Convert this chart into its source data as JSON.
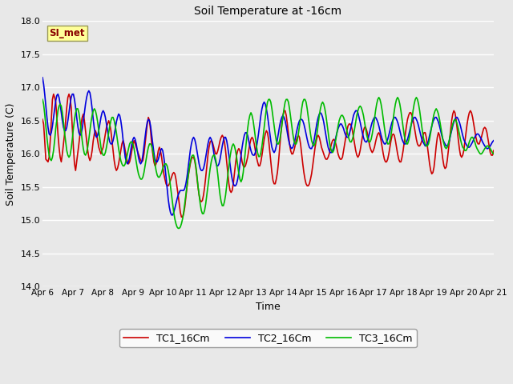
{
  "title": "Soil Temperature at -16cm",
  "xlabel": "Time",
  "ylabel": "Soil Temperature (C)",
  "ylim": [
    14.0,
    18.0
  ],
  "yticks": [
    14.0,
    14.5,
    15.0,
    15.5,
    16.0,
    16.5,
    17.0,
    17.5,
    18.0
  ],
  "xtick_labels": [
    "Apr 6",
    "Apr 7",
    "Apr 8",
    "Apr 9",
    "Apr 10",
    "Apr 11",
    "Apr 12",
    "Apr 13",
    "Apr 14",
    "Apr 15",
    "Apr 16",
    "Apr 17",
    "Apr 18",
    "Apr 19",
    "Apr 20",
    "Apr 21"
  ],
  "background_color": "#e8e8e8",
  "line_colors": [
    "#cc0000",
    "#0000dd",
    "#00bb00"
  ],
  "line_labels": [
    "TC1_16Cm",
    "TC2_16Cm",
    "TC3_16Cm"
  ],
  "annotation_text": "SI_met",
  "annotation_color": "#880000",
  "annotation_bg": "#ffff99",
  "TC1_16Cm": [
    16.52,
    16.45,
    16.2,
    15.92,
    15.9,
    15.88,
    15.95,
    16.2,
    16.5,
    16.82,
    16.9,
    16.85,
    16.78,
    16.55,
    16.3,
    16.1,
    15.95,
    15.88,
    16.0,
    16.15,
    16.3,
    16.5,
    16.7,
    16.85,
    16.9,
    16.85,
    16.7,
    16.4,
    16.1,
    15.85,
    15.75,
    15.88,
    16.0,
    16.15,
    16.3,
    16.45,
    16.55,
    16.6,
    16.5,
    16.35,
    16.2,
    16.05,
    15.95,
    15.9,
    15.95,
    16.05,
    16.2,
    16.3,
    16.35,
    16.3,
    16.2,
    16.1,
    16.05,
    16.0,
    16.05,
    16.1,
    16.2,
    16.3,
    16.4,
    16.45,
    16.5,
    16.45,
    16.35,
    16.2,
    16.05,
    15.9,
    15.8,
    15.75,
    15.78,
    15.85,
    15.95,
    16.05,
    16.15,
    16.2,
    16.15,
    16.05,
    15.95,
    15.88,
    15.85,
    15.88,
    15.95,
    16.05,
    16.15,
    16.2,
    16.15,
    16.1,
    16.05,
    16.0,
    15.95,
    15.9,
    15.88,
    15.9,
    16.0,
    16.15,
    16.3,
    16.45,
    16.55,
    16.5,
    16.35,
    16.15,
    16.0,
    15.88,
    15.82,
    15.85,
    15.95,
    16.05,
    16.1,
    16.05,
    15.95,
    15.82,
    15.7,
    15.62,
    15.55,
    15.52,
    15.52,
    15.55,
    15.6,
    15.65,
    15.7,
    15.72,
    15.7,
    15.62,
    15.5,
    15.38,
    15.25,
    15.12,
    15.05,
    15.05,
    15.1,
    15.2,
    15.35,
    15.5,
    15.65,
    15.75,
    15.85,
    15.92,
    15.95,
    15.95,
    15.9,
    15.8,
    15.65,
    15.5,
    15.38,
    15.3,
    15.28,
    15.3,
    15.38,
    15.5,
    15.65,
    15.82,
    15.98,
    16.1,
    16.18,
    16.2,
    16.18,
    16.12,
    16.05,
    16.0,
    16.0,
    16.05,
    16.12,
    16.2,
    16.25,
    16.28,
    16.25,
    16.18,
    16.05,
    15.88,
    15.7,
    15.55,
    15.45,
    15.42,
    15.45,
    15.55,
    15.7,
    15.85,
    15.98,
    16.05,
    16.08,
    16.05,
    15.98,
    15.88,
    15.82,
    15.8,
    15.82,
    15.88,
    15.95,
    16.05,
    16.15,
    16.22,
    16.25,
    16.22,
    16.15,
    16.05,
    15.95,
    15.88,
    15.82,
    15.82,
    15.88,
    15.98,
    16.1,
    16.22,
    16.3,
    16.35,
    16.32,
    16.22,
    16.05,
    15.88,
    15.72,
    15.6,
    15.55,
    15.55,
    15.62,
    15.72,
    15.88,
    16.08,
    16.28,
    16.45,
    16.58,
    16.65,
    16.65,
    16.58,
    16.45,
    16.3,
    16.15,
    16.05,
    16.0,
    16.0,
    16.05,
    16.12,
    16.2,
    16.25,
    16.28,
    16.25,
    16.15,
    16.0,
    15.85,
    15.72,
    15.62,
    15.55,
    15.52,
    15.52,
    15.55,
    15.62,
    15.7,
    15.82,
    15.95,
    16.08,
    16.18,
    16.25,
    16.28,
    16.25,
    16.18,
    16.1,
    16.05,
    16.0,
    15.95,
    15.92,
    15.92,
    15.95,
    16.0,
    16.08,
    16.15,
    16.2,
    16.22,
    16.2,
    16.15,
    16.08,
    16.0,
    15.95,
    15.92,
    15.92,
    15.95,
    16.05,
    16.15,
    16.25,
    16.35,
    16.42,
    16.45,
    16.45,
    16.42,
    16.35,
    16.25,
    16.15,
    16.05,
    15.98,
    15.95,
    15.98,
    16.05,
    16.15,
    16.25,
    16.35,
    16.4,
    16.4,
    16.35,
    16.28,
    16.18,
    16.1,
    16.05,
    16.02,
    16.05,
    16.1,
    16.18,
    16.25,
    16.3,
    16.32,
    16.28,
    16.2,
    16.1,
    16.0,
    15.92,
    15.88,
    15.88,
    15.92,
    16.0,
    16.1,
    16.2,
    16.28,
    16.3,
    16.28,
    16.2,
    16.1,
    16.0,
    15.92,
    15.88,
    15.88,
    15.95,
    16.05,
    16.18,
    16.3,
    16.42,
    16.52,
    16.58,
    16.62,
    16.62,
    16.58,
    16.52,
    16.42,
    16.32,
    16.22,
    16.15,
    16.12,
    16.12,
    16.15,
    16.2,
    16.28,
    16.32,
    16.32,
    16.25,
    16.12,
    15.98,
    15.85,
    15.75,
    15.7,
    15.72,
    15.8,
    15.95,
    16.12,
    16.25,
    16.32,
    16.28,
    16.18,
    16.05,
    15.92,
    15.82,
    15.78,
    15.8,
    15.9,
    16.05,
    16.2,
    16.35,
    16.5,
    16.6,
    16.65,
    16.62,
    16.52,
    16.38,
    16.22,
    16.08,
    15.98,
    15.95,
    15.98,
    16.05,
    16.18,
    16.32,
    16.45,
    16.55,
    16.62,
    16.65,
    16.62,
    16.55,
    16.45,
    16.35,
    16.25,
    16.18,
    16.15,
    16.15,
    16.2,
    16.25,
    16.32,
    16.38,
    16.4,
    16.38,
    16.32,
    16.22,
    16.12,
    16.02,
    15.98,
    15.98,
    16.05,
    16.15,
    16.28,
    16.42,
    16.55,
    16.65,
    16.72,
    16.72,
    16.68,
    16.58,
    16.45,
    16.32,
    16.2,
    16.12,
    16.08,
    16.1,
    16.15,
    16.22,
    16.3,
    16.38,
    16.45,
    16.48,
    16.48,
    16.45,
    16.38,
    16.32,
    16.25,
    16.2,
    16.18,
    16.18,
    16.22,
    16.28,
    16.35,
    16.4,
    16.45,
    16.45,
    16.42,
    16.35,
    16.25,
    16.15,
    16.08,
    16.05,
    16.08,
    16.15,
    16.25,
    16.38,
    16.5,
    16.62,
    16.7,
    16.72,
    16.72,
    16.65,
    16.55,
    16.42,
    16.3,
    16.2,
    16.12,
    16.1,
    16.12,
    16.18,
    16.25,
    16.35,
    16.42,
    16.48,
    16.52,
    16.5,
    16.45,
    16.38,
    16.32,
    16.28,
    16.28
  ],
  "TC2_16Cm": [
    17.15,
    17.05,
    16.9,
    16.72,
    16.55,
    16.4,
    16.3,
    16.28,
    16.32,
    16.42,
    16.55,
    16.68,
    16.8,
    16.88,
    16.9,
    16.85,
    16.75,
    16.62,
    16.5,
    16.4,
    16.35,
    16.35,
    16.4,
    16.5,
    16.62,
    16.75,
    16.85,
    16.9,
    16.9,
    16.82,
    16.7,
    16.55,
    16.42,
    16.32,
    16.28,
    16.3,
    16.38,
    16.5,
    16.62,
    16.75,
    16.85,
    16.92,
    16.95,
    16.92,
    16.82,
    16.68,
    16.52,
    16.38,
    16.28,
    16.25,
    16.28,
    16.35,
    16.45,
    16.55,
    16.62,
    16.65,
    16.62,
    16.55,
    16.45,
    16.35,
    16.25,
    16.18,
    16.15,
    16.15,
    16.2,
    16.28,
    16.38,
    16.48,
    16.55,
    16.6,
    16.58,
    16.5,
    16.38,
    16.22,
    16.08,
    15.95,
    15.88,
    15.85,
    15.88,
    15.95,
    16.05,
    16.15,
    16.22,
    16.25,
    16.22,
    16.15,
    16.05,
    15.95,
    15.88,
    15.85,
    15.88,
    15.98,
    16.12,
    16.25,
    16.38,
    16.48,
    16.52,
    16.5,
    16.42,
    16.28,
    16.15,
    16.02,
    15.92,
    15.88,
    15.88,
    15.92,
    15.98,
    16.05,
    16.08,
    16.05,
    15.95,
    15.82,
    15.65,
    15.48,
    15.32,
    15.2,
    15.12,
    15.08,
    15.08,
    15.12,
    15.18,
    15.25,
    15.32,
    15.38,
    15.42,
    15.45,
    15.45,
    15.45,
    15.45,
    15.48,
    15.55,
    15.65,
    15.78,
    15.92,
    16.05,
    16.15,
    16.22,
    16.25,
    16.22,
    16.15,
    16.05,
    15.95,
    15.85,
    15.78,
    15.75,
    15.75,
    15.78,
    15.85,
    15.95,
    16.05,
    16.15,
    16.22,
    16.25,
    16.22,
    16.15,
    16.05,
    15.95,
    15.88,
    15.82,
    15.82,
    15.85,
    15.92,
    16.02,
    16.12,
    16.2,
    16.25,
    16.25,
    16.2,
    16.1,
    15.98,
    15.85,
    15.72,
    15.62,
    15.55,
    15.52,
    15.52,
    15.55,
    15.62,
    15.72,
    15.85,
    15.98,
    16.1,
    16.2,
    16.28,
    16.32,
    16.32,
    16.28,
    16.2,
    16.12,
    16.05,
    16.0,
    15.98,
    15.98,
    16.02,
    16.1,
    16.2,
    16.32,
    16.45,
    16.58,
    16.68,
    16.75,
    16.78,
    16.75,
    16.68,
    16.58,
    16.45,
    16.32,
    16.2,
    16.1,
    16.05,
    16.02,
    16.05,
    16.12,
    16.22,
    16.32,
    16.42,
    16.5,
    16.55,
    16.58,
    16.55,
    16.5,
    16.42,
    16.32,
    16.22,
    16.15,
    16.1,
    16.08,
    16.1,
    16.15,
    16.22,
    16.3,
    16.38,
    16.45,
    16.5,
    16.52,
    16.52,
    16.5,
    16.45,
    16.38,
    16.3,
    16.22,
    16.15,
    16.1,
    16.08,
    16.08,
    16.12,
    16.18,
    16.28,
    16.38,
    16.48,
    16.55,
    16.6,
    16.62,
    16.6,
    16.55,
    16.48,
    16.38,
    16.28,
    16.18,
    16.1,
    16.05,
    16.02,
    16.02,
    16.05,
    16.1,
    16.18,
    16.25,
    16.32,
    16.38,
    16.42,
    16.45,
    16.45,
    16.42,
    16.38,
    16.32,
    16.28,
    16.25,
    16.25,
    16.28,
    16.35,
    16.42,
    16.5,
    16.58,
    16.62,
    16.65,
    16.65,
    16.62,
    16.55,
    16.48,
    16.4,
    16.32,
    16.25,
    16.2,
    16.18,
    16.18,
    16.22,
    16.28,
    16.35,
    16.42,
    16.48,
    16.52,
    16.55,
    16.55,
    16.52,
    16.48,
    16.42,
    16.35,
    16.28,
    16.22,
    16.18,
    16.15,
    16.15,
    16.18,
    16.22,
    16.28,
    16.35,
    16.42,
    16.48,
    16.52,
    16.55,
    16.55,
    16.52,
    16.48,
    16.42,
    16.35,
    16.28,
    16.22,
    16.18,
    16.15,
    16.15,
    16.18,
    16.22,
    16.28,
    16.35,
    16.42,
    16.48,
    16.52,
    16.55,
    16.55,
    16.52,
    16.48,
    16.42,
    16.35,
    16.28,
    16.22,
    16.18,
    16.15,
    16.12,
    16.12,
    16.15,
    16.2,
    16.28,
    16.35,
    16.42,
    16.48,
    16.52,
    16.55,
    16.55,
    16.52,
    16.48,
    16.42,
    16.35,
    16.28,
    16.22,
    16.18,
    16.15,
    16.12,
    16.12,
    16.15,
    16.2,
    16.28,
    16.35,
    16.42,
    16.48,
    16.52,
    16.55,
    16.55,
    16.52,
    16.48,
    16.42,
    16.35,
    16.28,
    16.22,
    16.18,
    16.15,
    16.12,
    16.1,
    16.1,
    16.12,
    16.15,
    16.18,
    16.22,
    16.25,
    16.28,
    16.3,
    16.3,
    16.28,
    16.25,
    16.22,
    16.18,
    16.15,
    16.12,
    16.1,
    16.08,
    16.08,
    16.1,
    16.12,
    16.15,
    16.18,
    16.2,
    16.22,
    16.22,
    16.2,
    16.18,
    16.15,
    16.12,
    16.1,
    16.08,
    16.05,
    16.05,
    16.08,
    16.1,
    16.12,
    16.15,
    16.18,
    16.2,
    16.22,
    16.22,
    16.2,
    16.18,
    16.15,
    16.12,
    16.1,
    16.08,
    16.05,
    16.05,
    16.08
  ],
  "TC3_16Cm": [
    16.82,
    16.75,
    16.6,
    16.42,
    16.25,
    16.1,
    15.98,
    15.92,
    15.9,
    15.95,
    16.05,
    16.2,
    16.38,
    16.52,
    16.65,
    16.72,
    16.75,
    16.72,
    16.62,
    16.48,
    16.32,
    16.18,
    16.05,
    15.98,
    15.95,
    15.98,
    16.08,
    16.22,
    16.38,
    16.52,
    16.62,
    16.68,
    16.68,
    16.62,
    16.5,
    16.35,
    16.2,
    16.08,
    16.0,
    15.98,
    16.02,
    16.1,
    16.22,
    16.35,
    16.48,
    16.58,
    16.65,
    16.68,
    16.65,
    16.58,
    16.48,
    16.35,
    16.22,
    16.1,
    16.02,
    15.98,
    15.98,
    16.02,
    16.1,
    16.2,
    16.32,
    16.42,
    16.5,
    16.55,
    16.55,
    16.5,
    16.42,
    16.32,
    16.2,
    16.08,
    15.98,
    15.9,
    15.85,
    15.82,
    15.82,
    15.85,
    15.92,
    16.0,
    16.08,
    16.15,
    16.18,
    16.18,
    16.15,
    16.08,
    15.98,
    15.88,
    15.78,
    15.7,
    15.65,
    15.62,
    15.62,
    15.65,
    15.72,
    15.82,
    15.92,
    16.02,
    16.1,
    16.15,
    16.15,
    16.12,
    16.05,
    15.95,
    15.85,
    15.75,
    15.68,
    15.65,
    15.65,
    15.68,
    15.72,
    15.78,
    15.82,
    15.85,
    15.85,
    15.82,
    15.75,
    15.65,
    15.52,
    15.38,
    15.25,
    15.12,
    15.02,
    14.95,
    14.9,
    14.88,
    14.88,
    14.9,
    14.95,
    15.02,
    15.12,
    15.25,
    15.38,
    15.52,
    15.65,
    15.78,
    15.88,
    15.95,
    15.98,
    15.98,
    15.92,
    15.82,
    15.68,
    15.52,
    15.38,
    15.25,
    15.15,
    15.1,
    15.1,
    15.15,
    15.25,
    15.38,
    15.52,
    15.65,
    15.78,
    15.88,
    15.95,
    15.98,
    15.98,
    15.92,
    15.82,
    15.68,
    15.52,
    15.38,
    15.28,
    15.22,
    15.22,
    15.28,
    15.38,
    15.52,
    15.68,
    15.82,
    15.95,
    16.05,
    16.12,
    16.15,
    16.12,
    16.05,
    15.95,
    15.82,
    15.7,
    15.62,
    15.58,
    15.62,
    15.72,
    15.88,
    16.05,
    16.22,
    16.38,
    16.5,
    16.58,
    16.62,
    16.58,
    16.5,
    16.38,
    16.25,
    16.12,
    16.02,
    15.96,
    15.96,
    16.02,
    16.12,
    16.25,
    16.4,
    16.55,
    16.68,
    16.78,
    16.82,
    16.82,
    16.78,
    16.68,
    16.55,
    16.42,
    16.3,
    16.2,
    16.15,
    16.15,
    16.2,
    16.3,
    16.42,
    16.55,
    16.68,
    16.78,
    16.82,
    16.82,
    16.78,
    16.68,
    16.55,
    16.42,
    16.3,
    16.2,
    16.15,
    16.15,
    16.2,
    16.3,
    16.42,
    16.55,
    16.68,
    16.78,
    16.82,
    16.82,
    16.78,
    16.68,
    16.55,
    16.42,
    16.3,
    16.2,
    16.15,
    16.12,
    16.15,
    16.22,
    16.32,
    16.45,
    16.58,
    16.68,
    16.75,
    16.78,
    16.75,
    16.68,
    16.58,
    16.45,
    16.32,
    16.2,
    16.1,
    16.05,
    16.02,
    16.05,
    16.12,
    16.22,
    16.32,
    16.42,
    16.5,
    16.55,
    16.58,
    16.58,
    16.55,
    16.5,
    16.42,
    16.35,
    16.28,
    16.22,
    16.18,
    16.18,
    16.22,
    16.28,
    16.38,
    16.48,
    16.58,
    16.65,
    16.7,
    16.72,
    16.7,
    16.65,
    16.58,
    16.48,
    16.38,
    16.28,
    16.22,
    16.18,
    16.18,
    16.22,
    16.3,
    16.4,
    16.52,
    16.65,
    16.75,
    16.82,
    16.85,
    16.82,
    16.75,
    16.65,
    16.52,
    16.4,
    16.28,
    16.2,
    16.15,
    16.15,
    16.2,
    16.28,
    16.4,
    16.52,
    16.65,
    16.75,
    16.82,
    16.85,
    16.82,
    16.75,
    16.65,
    16.52,
    16.4,
    16.28,
    16.2,
    16.15,
    16.15,
    16.2,
    16.28,
    16.4,
    16.52,
    16.65,
    16.75,
    16.82,
    16.85,
    16.82,
    16.75,
    16.65,
    16.52,
    16.4,
    16.28,
    16.2,
    16.15,
    16.12,
    16.12,
    16.15,
    16.22,
    16.32,
    16.42,
    16.52,
    16.6,
    16.65,
    16.68,
    16.65,
    16.6,
    16.52,
    16.42,
    16.32,
    16.22,
    16.15,
    16.1,
    16.08,
    16.1,
    16.15,
    16.22,
    16.3,
    16.38,
    16.45,
    16.5,
    16.52,
    16.5,
    16.45,
    16.38,
    16.3,
    16.22,
    16.15,
    16.1,
    16.08,
    16.05,
    16.05,
    16.08,
    16.12,
    16.18,
    16.22,
    16.25,
    16.25,
    16.22,
    16.18,
    16.12,
    16.08,
    16.05,
    16.02,
    16.0,
    16.0,
    16.02,
    16.05,
    16.08,
    16.1,
    16.12,
    16.12,
    16.1,
    16.08,
    16.05,
    16.02,
    16.0
  ]
}
